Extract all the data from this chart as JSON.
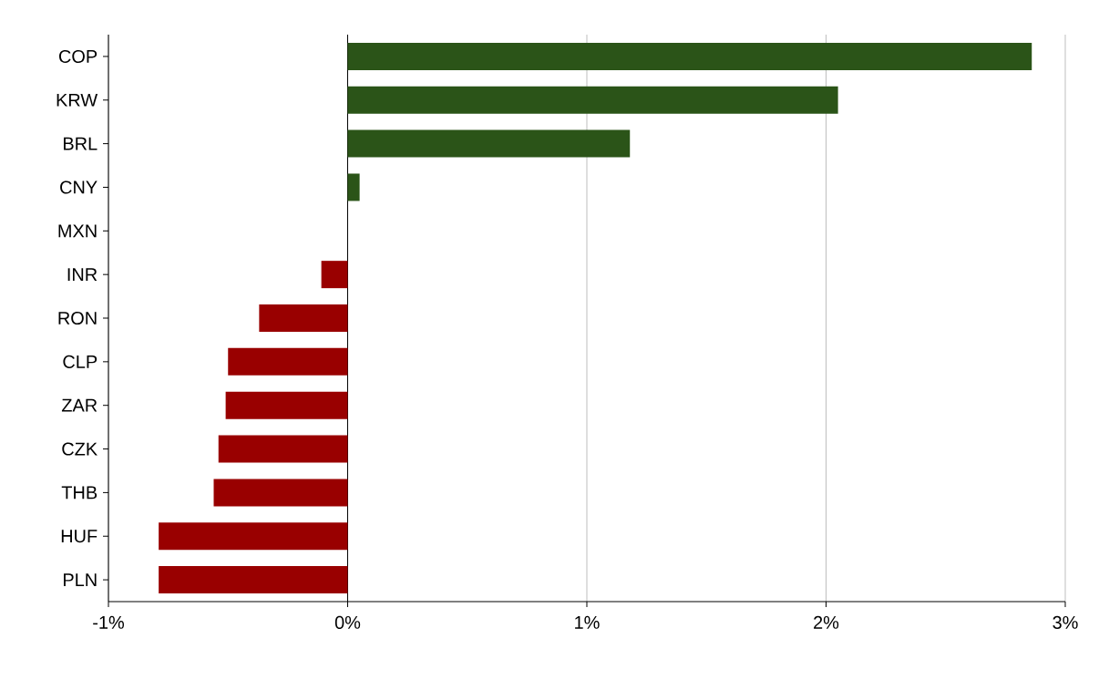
{
  "chart_data": {
    "type": "bar",
    "orientation": "horizontal",
    "categories": [
      "COP",
      "KRW",
      "BRL",
      "CNY",
      "MXN",
      "INR",
      "RON",
      "CLP",
      "ZAR",
      "CZK",
      "THB",
      "HUF",
      "PLN"
    ],
    "values": [
      2.86,
      2.05,
      1.18,
      0.05,
      0,
      -0.11,
      -0.37,
      -0.5,
      -0.51,
      -0.54,
      -0.56,
      -0.79,
      -0.79
    ],
    "colors": [
      "#2b5418",
      "#2b5418",
      "#2b5418",
      "#2b5418",
      "#2b5418",
      "#990000",
      "#990000",
      "#990000",
      "#990000",
      "#990000",
      "#990000",
      "#990000",
      "#990000"
    ],
    "xlim": [
      -1,
      3
    ],
    "xticks": [
      {
        "value": -1,
        "label": "-1%"
      },
      {
        "value": 0,
        "label": "0%"
      },
      {
        "value": 1,
        "label": "1%"
      },
      {
        "value": 2,
        "label": "2%"
      },
      {
        "value": 3,
        "label": "3%"
      }
    ],
    "grid": "x"
  }
}
